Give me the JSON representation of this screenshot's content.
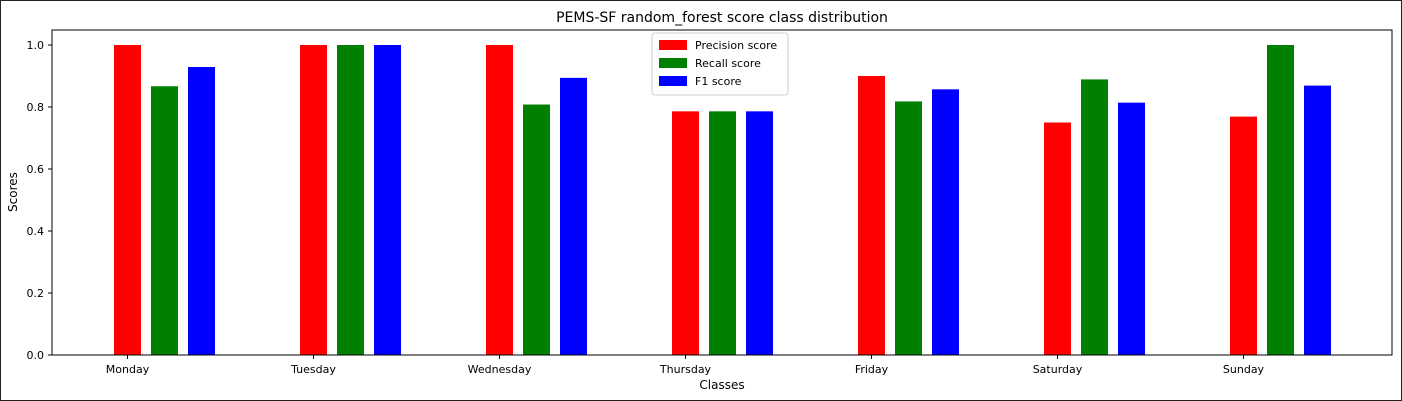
{
  "chart_data": {
    "type": "bar",
    "title": "PEMS-SF random_forest score class distribution",
    "xlabel": "Classes",
    "ylabel": "Scores",
    "categories": [
      "Monday",
      "Tuesday",
      "Wednesday",
      "Thursday",
      "Friday",
      "Saturday",
      "Sunday"
    ],
    "ylim": [
      0,
      1.05
    ],
    "yticks": [
      "0.0",
      "0.2",
      "0.4",
      "0.6",
      "0.8",
      "1.0"
    ],
    "grid": false,
    "legend_position": "top-center",
    "series": [
      {
        "name": "Precision score",
        "color": "#ff0000",
        "values": [
          1.0,
          1.0,
          1.0,
          0.786,
          0.9,
          0.75,
          0.769
        ]
      },
      {
        "name": "Recall score",
        "color": "#008000",
        "values": [
          0.867,
          1.0,
          0.808,
          0.786,
          0.818,
          0.889,
          1.0
        ]
      },
      {
        "name": "F1 score",
        "color": "#0000ff",
        "values": [
          0.929,
          1.0,
          0.894,
          0.786,
          0.857,
          0.814,
          0.869
        ]
      }
    ]
  }
}
